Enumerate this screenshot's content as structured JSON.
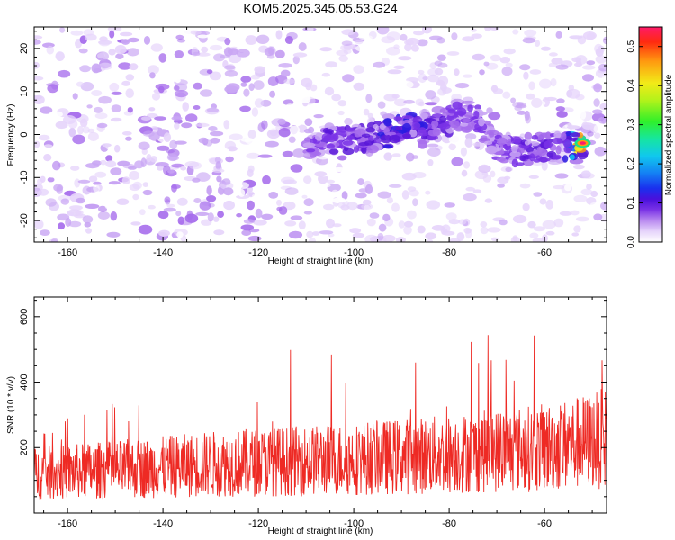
{
  "title": "KOM5.2025.345.05.53.G24",
  "colors": {
    "snr_line": "#ee2a24",
    "frame": "#000000",
    "background": "#ffffff",
    "colormap": [
      "#ffffff",
      "#e6d4fb",
      "#c9a6f4",
      "#a66cec",
      "#7a33e6",
      "#5a18d8",
      "#2a1be0",
      "#1a5cf0",
      "#10c8ee",
      "#18e28a",
      "#8cf21a",
      "#f2f218",
      "#ff9a10",
      "#ff2a10",
      "#ff1a6a"
    ]
  },
  "chart_data": [
    {
      "type": "heatmap",
      "title": "KOM5.2025.345.05.53.G24",
      "xlabel": "Height of straight line (km)",
      "ylabel": "Frequency (Hz)",
      "xlim": [
        -167,
        -47
      ],
      "ylim": [
        -25,
        25
      ],
      "x_ticks": [
        -160,
        -140,
        -120,
        -100,
        -80,
        -60
      ],
      "y_ticks": [
        -20,
        -10,
        0,
        10,
        20
      ],
      "colorbar": {
        "label": "Normalized spectral amplitude",
        "range": [
          0.0,
          0.55
        ],
        "ticks": [
          "0.0",
          "0.1",
          "0.2",
          "0.3",
          "0.4",
          "0.5"
        ]
      },
      "signal_trace": {
        "description": "bright signal band near 0 Hz drifting with height",
        "points": [
          {
            "x": -110,
            "y": -2,
            "v": 0.18
          },
          {
            "x": -104,
            "y": -1,
            "v": 0.2
          },
          {
            "x": -98,
            "y": -1,
            "v": 0.22
          },
          {
            "x": -93,
            "y": 0,
            "v": 0.26
          },
          {
            "x": -88,
            "y": 2,
            "v": 0.28
          },
          {
            "x": -84,
            "y": 2,
            "v": 0.22
          },
          {
            "x": -78,
            "y": 4,
            "v": 0.2
          },
          {
            "x": -74,
            "y": 4,
            "v": 0.18
          },
          {
            "x": -70,
            "y": -3,
            "v": 0.18
          },
          {
            "x": -66,
            "y": -4,
            "v": 0.2
          },
          {
            "x": -60,
            "y": -3,
            "v": 0.22
          },
          {
            "x": -56,
            "y": -3,
            "v": 0.26
          },
          {
            "x": -52,
            "y": -2,
            "v": 0.52
          }
        ]
      }
    },
    {
      "type": "line",
      "xlabel": "Height of straight line (km)",
      "ylabel": "SNR (10 * v/v)",
      "xlim": [
        -167,
        -47
      ],
      "ylim": [
        0,
        660
      ],
      "x_ticks": [
        -160,
        -140,
        -120,
        -100,
        -80,
        -60
      ],
      "y_ticks": [
        200,
        400,
        600
      ],
      "series": [
        {
          "name": "SNR",
          "baseline_trend": [
            {
              "x": -167,
              "mean": 120,
              "peak": 280
            },
            {
              "x": -140,
              "mean": 140,
              "peak": 380
            },
            {
              "x": -130,
              "mean": 150,
              "peak": 490
            },
            {
              "x": -100,
              "mean": 165,
              "peak": 510
            },
            {
              "x": -80,
              "mean": 180,
              "peak": 540
            },
            {
              "x": -60,
              "mean": 200,
              "peak": 600
            },
            {
              "x": -50,
              "mean": 220,
              "peak": 650
            },
            {
              "x": -47,
              "mean": 230,
              "peak": 570
            }
          ]
        }
      ]
    }
  ]
}
